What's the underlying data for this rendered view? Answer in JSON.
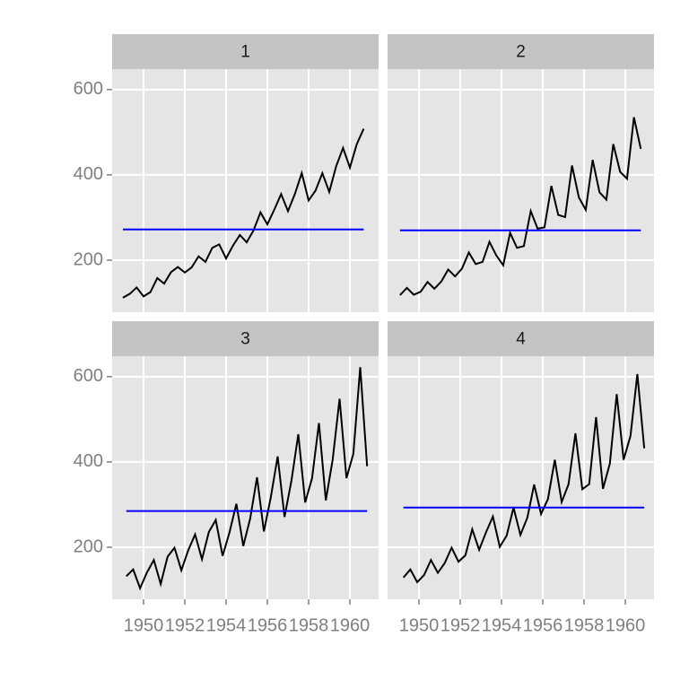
{
  "chart_data": [
    {
      "type": "line",
      "title": "1",
      "color": "#000000",
      "mean_color": "#0000ff",
      "mean": 272,
      "x": [
        1949.0,
        1949.333,
        1949.667,
        1950.0,
        1950.333,
        1950.667,
        1951.0,
        1951.333,
        1951.667,
        1952.0,
        1952.333,
        1952.667,
        1953.0,
        1953.333,
        1953.667,
        1954.0,
        1954.333,
        1954.667,
        1955.0,
        1955.333,
        1955.667,
        1956.0,
        1956.333,
        1956.667,
        1957.0,
        1957.333,
        1957.667,
        1958.0,
        1958.333,
        1958.667,
        1959.0,
        1959.333,
        1959.667,
        1960.0,
        1960.333,
        1960.667
      ],
      "values": [
        112,
        121,
        136,
        115,
        125,
        158,
        145,
        172,
        184,
        171,
        183,
        209,
        196,
        229,
        237,
        204,
        234,
        259,
        242,
        270,
        312,
        284,
        318,
        355,
        315,
        355,
        404,
        340,
        363,
        404,
        360,
        420,
        463,
        417,
        472,
        508
      ],
      "xlim": [
        1948.48,
        1961.39
      ],
      "ylim": [
        78,
        648
      ],
      "xticks": [
        1950,
        1952,
        1954,
        1956,
        1958,
        1960
      ],
      "yticks": [
        200,
        400,
        600
      ],
      "grid": true
    },
    {
      "type": "line",
      "title": "2",
      "color": "#000000",
      "mean_color": "#0000ff",
      "mean": 270,
      "x": [
        1949.083,
        1949.417,
        1949.75,
        1950.083,
        1950.417,
        1950.75,
        1951.083,
        1951.417,
        1951.75,
        1952.083,
        1952.417,
        1952.75,
        1953.083,
        1953.417,
        1953.75,
        1954.083,
        1954.417,
        1954.75,
        1955.083,
        1955.417,
        1955.75,
        1956.083,
        1956.417,
        1956.75,
        1957.083,
        1957.417,
        1957.75,
        1958.083,
        1958.417,
        1958.75,
        1959.083,
        1959.417,
        1959.75,
        1960.083,
        1960.417,
        1960.75
      ],
      "values": [
        118,
        135,
        119,
        126,
        149,
        133,
        150,
        178,
        162,
        180,
        218,
        191,
        196,
        243,
        211,
        188,
        264,
        229,
        233,
        315,
        274,
        277,
        374,
        306,
        301,
        422,
        347,
        318,
        435,
        359,
        342,
        472,
        407,
        391,
        535,
        461
      ],
      "xlim": [
        1948.48,
        1961.39
      ],
      "ylim": [
        78,
        648
      ],
      "xticks": [
        1950,
        1952,
        1954,
        1956,
        1958,
        1960
      ],
      "yticks": [
        200,
        400,
        600
      ],
      "grid": true
    },
    {
      "type": "line",
      "title": "3",
      "color": "#000000",
      "mean_color": "#0000ff",
      "mean": 285,
      "x": [
        1949.167,
        1949.5,
        1949.833,
        1950.167,
        1950.5,
        1950.833,
        1951.167,
        1951.5,
        1951.833,
        1952.167,
        1952.5,
        1952.833,
        1953.167,
        1953.5,
        1953.833,
        1954.167,
        1954.5,
        1954.833,
        1955.167,
        1955.5,
        1955.833,
        1956.167,
        1956.5,
        1956.833,
        1957.167,
        1957.5,
        1957.833,
        1958.167,
        1958.5,
        1958.833,
        1959.167,
        1959.5,
        1959.833,
        1960.167,
        1960.5,
        1960.833
      ],
      "values": [
        132,
        148,
        104,
        141,
        170,
        114,
        178,
        199,
        146,
        193,
        230,
        172,
        236,
        264,
        180,
        235,
        302,
        203,
        267,
        364,
        237,
        317,
        413,
        271,
        356,
        465,
        305,
        362,
        491,
        310,
        406,
        548,
        362,
        419,
        622,
        390
      ],
      "xlim": [
        1948.48,
        1961.39
      ],
      "ylim": [
        78,
        648
      ],
      "xticks": [
        1950,
        1952,
        1954,
        1956,
        1958,
        1960
      ],
      "yticks": [
        200,
        400,
        600
      ],
      "grid": true
    },
    {
      "type": "line",
      "title": "4",
      "color": "#000000",
      "mean_color": "#0000ff",
      "mean": 293,
      "x": [
        1949.25,
        1949.583,
        1949.917,
        1950.25,
        1950.583,
        1950.917,
        1951.25,
        1951.583,
        1951.917,
        1952.25,
        1952.583,
        1952.917,
        1953.25,
        1953.583,
        1953.917,
        1954.25,
        1954.583,
        1954.917,
        1955.25,
        1955.583,
        1955.917,
        1956.25,
        1956.583,
        1956.917,
        1957.25,
        1957.583,
        1957.917,
        1958.25,
        1958.583,
        1958.917,
        1959.25,
        1959.583,
        1959.917,
        1960.25,
        1960.583,
        1960.917
      ],
      "values": [
        129,
        148,
        118,
        135,
        170,
        140,
        163,
        199,
        166,
        181,
        242,
        194,
        235,
        272,
        201,
        227,
        293,
        229,
        269,
        347,
        278,
        313,
        405,
        306,
        348,
        467,
        336,
        348,
        505,
        337,
        396,
        559,
        405,
        461,
        606,
        432
      ],
      "xlim": [
        1948.48,
        1961.39
      ],
      "ylim": [
        78,
        648
      ],
      "xticks": [
        1950,
        1952,
        1954,
        1956,
        1958,
        1960
      ],
      "yticks": [
        200,
        400,
        600
      ],
      "grid": true
    }
  ]
}
